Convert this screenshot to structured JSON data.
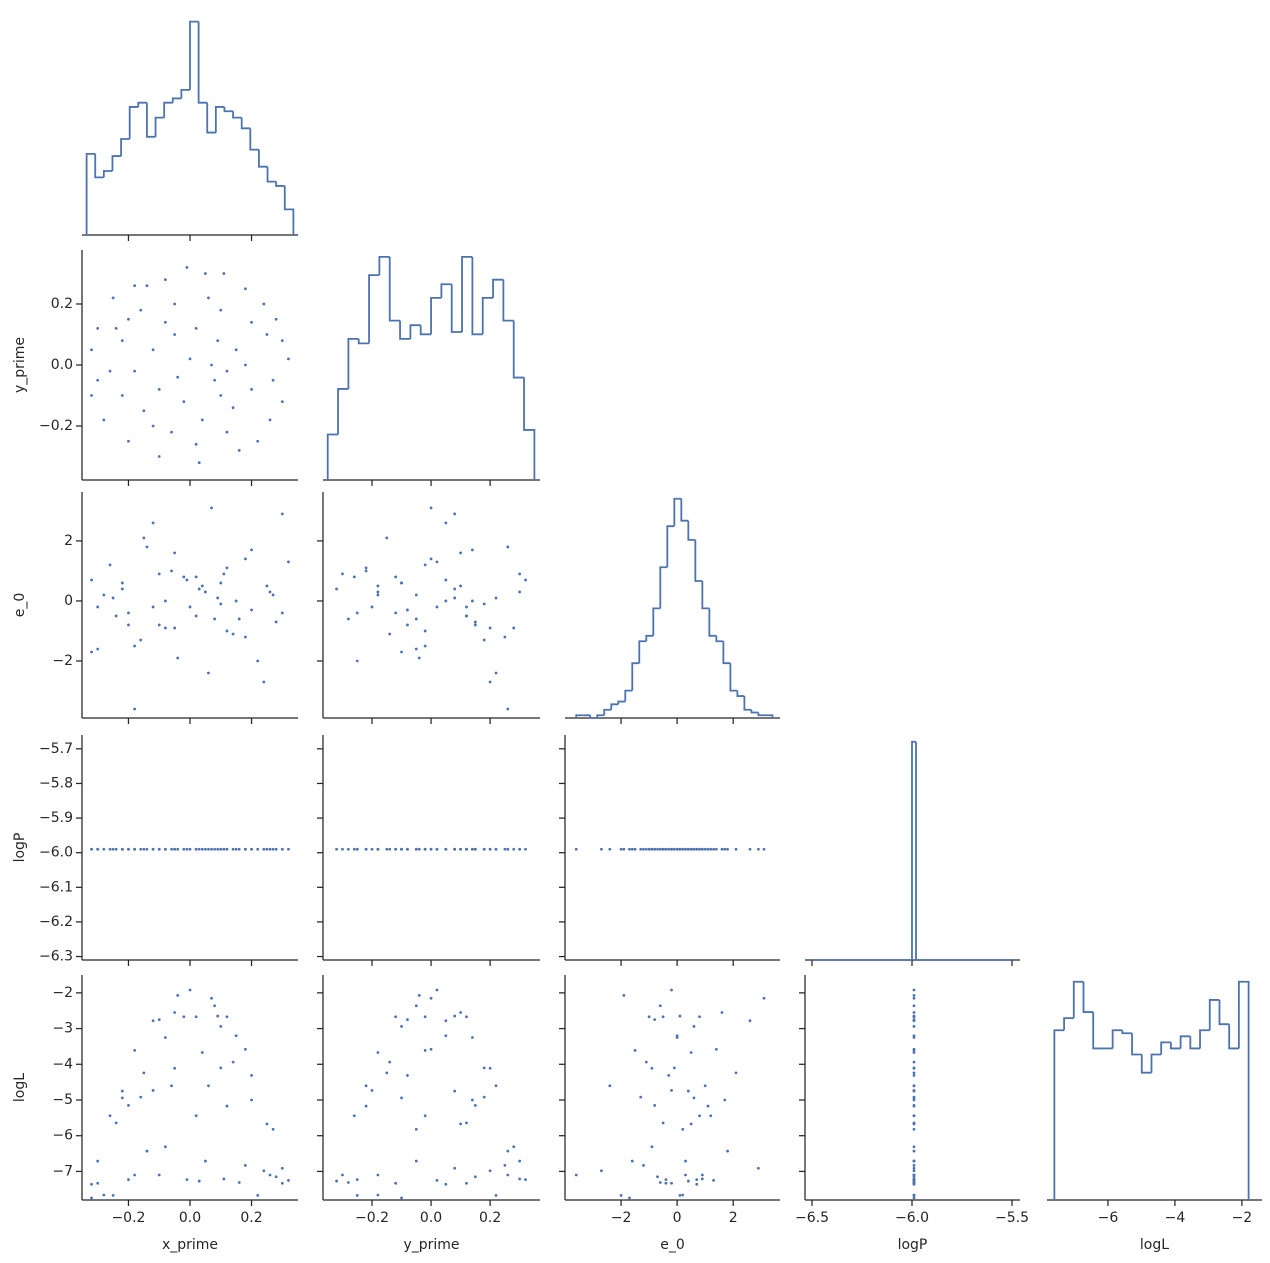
{
  "chart_data": {
    "type": "pairplot",
    "color": "#4c72b0",
    "variables": [
      {
        "name": "x_prime",
        "values": [
          0.05,
          -0.2,
          0.12,
          -0.3,
          0.25,
          0.0,
          -0.1,
          0.3,
          -0.05,
          0.18,
          -0.25,
          0.08,
          -0.15,
          0.22,
          -0.32,
          0.1,
          -0.08,
          0.32,
          0.03,
          -0.18,
          0.15,
          -0.02,
          0.2,
          -0.12,
          0.06,
          -0.28,
          0.28,
          -0.06,
          0.14,
          -0.22,
          0.02,
          -0.14,
          0.26,
          -0.04,
          0.11,
          -0.3,
          0.18,
          -0.1,
          0.04,
          -0.2,
          0.3,
          -0.16,
          0.09,
          -0.26,
          0.16,
          -0.01,
          0.24,
          -0.08,
          0.12,
          -0.22,
          0.2,
          -0.12,
          0.02,
          -0.32,
          0.07,
          -0.05,
          0.27,
          -0.18,
          0.1,
          -0.24
        ],
        "xlim": [
          -0.351,
          0.351
        ],
        "xticks": [
          {
            "value": -0.2,
            "label": "−0.2"
          },
          {
            "value": 0,
            "label": "0.0"
          },
          0.2
        ],
        "hist": {
          "bins": [
            -0.336,
            -0.308,
            -0.28,
            -0.252,
            -0.224,
            -0.196,
            -0.168,
            -0.14,
            -0.112,
            -0.084,
            -0.056,
            -0.028,
            0,
            0.028,
            0.056,
            0.084,
            0.112,
            0.14,
            0.168,
            0.196,
            0.224,
            0.252,
            0.28,
            0.308,
            0.336
          ],
          "counts": [
            38,
            27,
            30,
            37,
            45,
            60,
            62,
            46,
            55,
            62,
            64,
            68,
            100,
            62,
            48,
            60,
            58,
            55,
            50,
            40,
            32,
            25,
            23,
            12
          ]
        }
      },
      {
        "name": "y_prime",
        "values": [
          0.3,
          0.15,
          -0.22,
          -0.05,
          0.1,
          0.02,
          -0.3,
          -0.12,
          0.1,
          0.25,
          0.22,
          -0.05,
          -0.15,
          -0.25,
          0.05,
          0.18,
          0.28,
          0.02,
          -0.32,
          -0.02,
          0.05,
          -0.12,
          -0.08,
          0.05,
          0.22,
          -0.18,
          0.15,
          -0.22,
          -0.14,
          -0.1,
          0.12,
          0.26,
          -0.18,
          -0.04,
          0.3,
          0.12,
          0.0,
          -0.08,
          -0.18,
          -0.25,
          0.08,
          0.18,
          0.08,
          -0.02,
          -0.28,
          0.32,
          0.2,
          0.14,
          -0.02,
          0.08,
          0.14,
          -0.2,
          -0.26,
          -0.1,
          0.0,
          0.2,
          -0.05,
          0.26,
          -0.1,
          0.12
        ],
        "xlim": [
          -0.366,
          0.369
        ],
        "xticks": [
          {
            "value": -0.2,
            "label": "−0.2"
          },
          {
            "value": 0,
            "label": "0.0"
          },
          0.2
        ],
        "ylim": [
          -0.377,
          0.377
        ],
        "yticks": [
          {
            "value": -0.2,
            "label": "−0.2"
          },
          {
            "value": 0,
            "label": "0.0"
          },
          0.2
        ],
        "hist": {
          "bins": [
            -0.35,
            -0.315,
            -0.28,
            -0.245,
            -0.21,
            -0.175,
            -0.14,
            -0.105,
            -0.07,
            -0.035,
            0,
            0.035,
            0.07,
            0.105,
            0.14,
            0.175,
            0.21,
            0.245,
            0.28,
            0.315,
            0.35
          ],
          "counts": [
            20,
            40,
            62,
            60,
            90,
            98,
            70,
            62,
            68,
            64,
            80,
            86,
            65,
            98,
            64,
            80,
            88,
            70,
            45,
            22
          ]
        }
      },
      {
        "name": "e_0",
        "values": [
          0.3,
          -0.8,
          1.1,
          -1.6,
          0.5,
          -0.2,
          0.9,
          -0.4,
          1.6,
          -1.2,
          0.1,
          -0.6,
          2.1,
          -2.0,
          0.7,
          -0.1,
          -0.9,
          1.3,
          0.4,
          -1.5,
          0.0,
          0.8,
          -0.3,
          2.6,
          -2.4,
          0.2,
          -0.7,
          1.0,
          -1.1,
          0.6,
          -0.5,
          1.8,
          0.3,
          -1.9,
          0.9,
          -0.2,
          1.4,
          -0.8,
          0.5,
          -0.4,
          2.9,
          -1.3,
          0.1,
          1.2,
          -0.6,
          0.7,
          -2.7,
          0.0,
          -1.0,
          0.4,
          1.7,
          -0.2,
          0.8,
          -1.7,
          3.1,
          -0.9,
          0.2,
          -3.6,
          0.6,
          -0.5
        ],
        "xlim": [
          -4.0,
          3.67
        ],
        "xticks": [
          {
            "value": -2,
            "label": "−2"
          },
          0,
          2
        ],
        "ylim": [
          -3.9,
          3.63
        ],
        "yticks": [
          {
            "value": -2,
            "label": "−2"
          },
          0,
          2
        ],
        "hist": {
          "bins": [
            -3.6,
            -3.35,
            -3.1,
            -2.85,
            -2.6,
            -2.35,
            -2.1,
            -1.85,
            -1.6,
            -1.35,
            -1.1,
            -0.85,
            -0.6,
            -0.35,
            -0.1,
            0.15,
            0.4,
            0.65,
            0.9,
            1.15,
            1.4,
            1.65,
            1.9,
            2.15,
            2.4,
            2.65,
            2.9,
            3.15,
            3.4
          ],
          "counts": [
            1,
            1,
            0,
            1,
            3,
            5,
            6,
            10,
            20,
            28,
            30,
            40,
            55,
            70,
            80,
            72,
            65,
            50,
            40,
            30,
            28,
            20,
            10,
            8,
            3,
            2,
            1,
            1
          ]
        }
      },
      {
        "name": "logP",
        "values": [
          -5.99,
          -5.99,
          -5.99,
          -5.99,
          -5.99,
          -5.99,
          -5.99,
          -5.99,
          -5.99,
          -5.99,
          -5.99,
          -5.99,
          -5.99,
          -5.99,
          -5.99,
          -5.99,
          -5.99,
          -5.99,
          -5.99,
          -5.99,
          -5.99,
          -5.99,
          -5.99,
          -5.99,
          -5.99,
          -5.99,
          -5.99,
          -5.99,
          -5.99,
          -5.99,
          -5.99,
          -5.99,
          -5.99,
          -5.99,
          -5.99,
          -5.99,
          -5.99,
          -5.99,
          -5.99,
          -5.99,
          -5.99,
          -5.99,
          -5.99,
          -5.99,
          -5.99,
          -5.99,
          -5.99,
          -5.99,
          -5.99,
          -5.99,
          -5.99,
          -5.99,
          -5.99,
          -5.99,
          -5.99,
          -5.99,
          -5.99,
          -5.99,
          -5.99,
          -5.99
        ],
        "xlim": [
          -6.535,
          -5.46
        ],
        "xticks": [
          {
            "value": -6.5,
            "label": "−6.5"
          },
          {
            "value": -6,
            "label": "−6.0"
          },
          {
            "value": -5.5,
            "label": "−5.5"
          }
        ],
        "ylim": [
          -6.31,
          -5.66
        ],
        "yticks": [
          {
            "value": -5.7,
            "label": "−5.7"
          },
          {
            "value": -5.8,
            "label": "−5.8"
          },
          {
            "value": -5.9,
            "label": "−5.9"
          },
          {
            "value": -6,
            "label": "−6.0"
          },
          {
            "value": -6.1,
            "label": "−6.1"
          },
          {
            "value": -6.2,
            "label": "−6.2"
          },
          {
            "value": -6.3,
            "label": "−6.3"
          }
        ],
        "hist": {
          "bins": [
            -6.5,
            -6.0,
            -5.98,
            -5.5
          ],
          "counts": [
            0,
            1000,
            0
          ]
        }
      },
      {
        "name": "logL",
        "values": [
          -6.71,
          -5.15,
          -5.17,
          -6.71,
          -5.67,
          -1.92,
          -7.1,
          -7.33,
          -2.55,
          -6.83,
          -7.67,
          -2.36,
          -4.24,
          -7.67,
          -7.36,
          -4.1,
          -6.31,
          -7.25,
          -7.27,
          -3.61,
          -3.2,
          -2.67,
          -4.31,
          -2.78,
          -4.6,
          -7.66,
          -7.15,
          -4.6,
          -3.94,
          -4.94,
          -2.67,
          -6.43,
          -7.1,
          -2.07,
          -7.21,
          -7.33,
          -3.58,
          -2.75,
          -3.67,
          -7.23,
          -6.91,
          -4.92,
          -2.65,
          -5.44,
          -7.31,
          -7.23,
          -6.98,
          -3.25,
          -2.67,
          -4.75,
          -5.0,
          -4.73,
          -5.44,
          -7.74,
          -2.15,
          -4.11,
          -5.82,
          -7.1,
          -2.94,
          -5.64
        ],
        "xlim": [
          -7.82,
          -1.4
        ],
        "xticks": [
          {
            "value": -6,
            "label": "−6"
          },
          {
            "value": -4,
            "label": "−4"
          },
          {
            "value": -2,
            "label": "−2"
          }
        ],
        "ylim": [
          -7.8,
          -1.5
        ],
        "yticks": [
          {
            "value": -2,
            "label": "−2"
          },
          {
            "value": -3,
            "label": "−3"
          },
          {
            "value": -4,
            "label": "−4"
          },
          {
            "value": -5,
            "label": "−5"
          },
          {
            "value": -6,
            "label": "−6"
          },
          {
            "value": -7,
            "label": "−7"
          }
        ],
        "hist": {
          "bins": [
            -7.6,
            -7.31,
            -7.02,
            -6.73,
            -6.44,
            -6.15,
            -5.86,
            -5.57,
            -5.28,
            -4.99,
            -4.7,
            -4.41,
            -4.12,
            -3.83,
            -3.54,
            -3.25,
            -2.96,
            -2.67,
            -2.38,
            -2.09,
            -1.8
          ],
          "counts": [
            56,
            60,
            72,
            62,
            50,
            50,
            56,
            55,
            48,
            42,
            48,
            52,
            50,
            54,
            50,
            56,
            66,
            58,
            50,
            72
          ]
        }
      }
    ]
  }
}
